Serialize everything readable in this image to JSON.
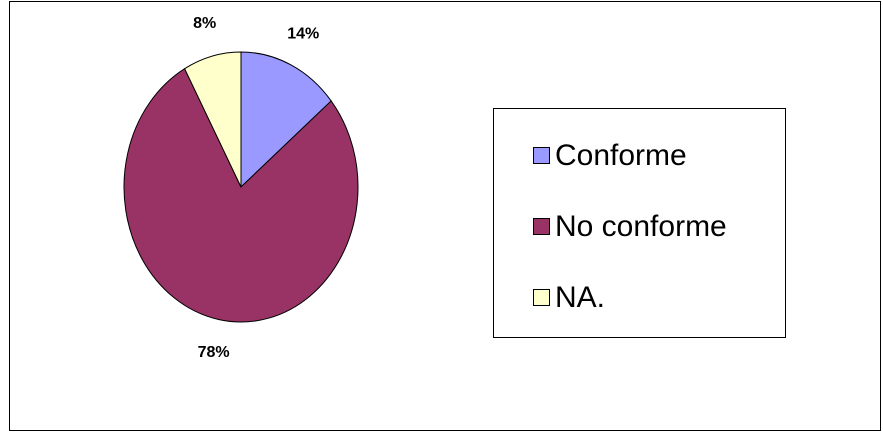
{
  "chart_data": {
    "type": "pie",
    "categories": [
      "Conforme",
      "No conforme",
      "NA."
    ],
    "values": [
      14,
      78,
      8
    ],
    "value_labels": [
      "14%",
      "78%",
      "8%"
    ],
    "colors": [
      "#9999ff",
      "#993366",
      "#ffffcc"
    ]
  }
}
